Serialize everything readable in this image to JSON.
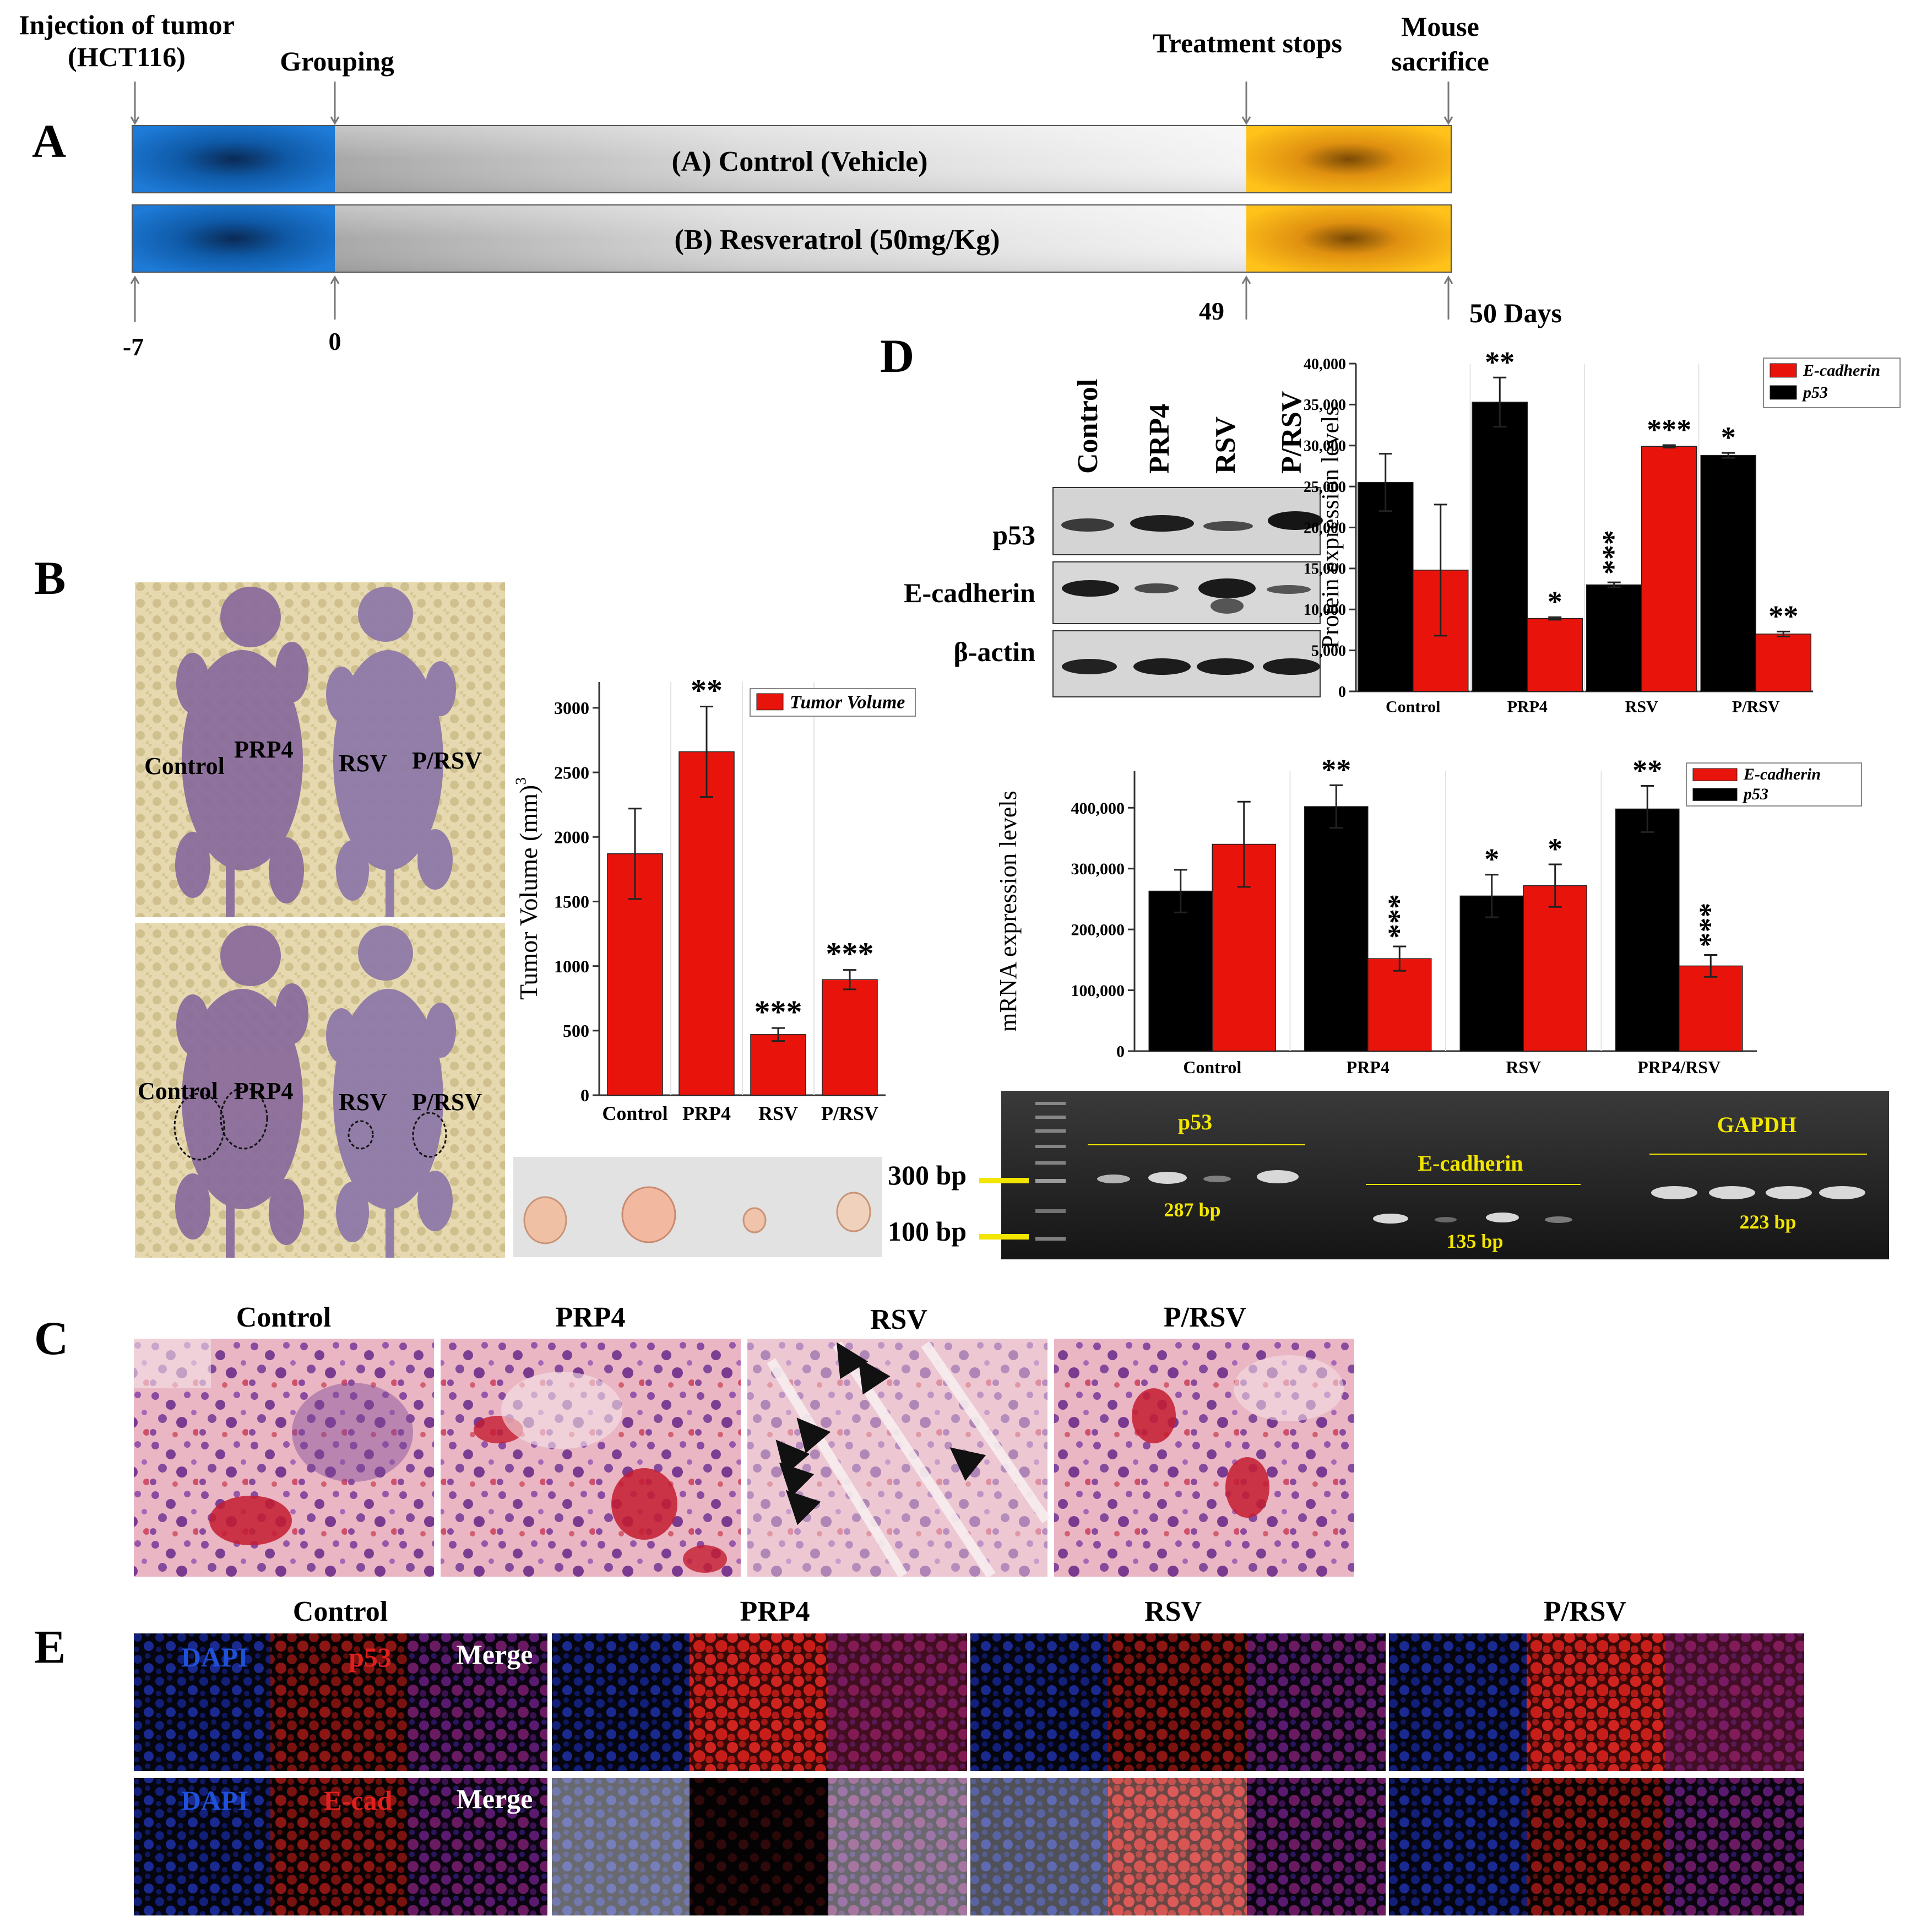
{
  "panel_labels": {
    "a": "A",
    "b": "B",
    "c": "C",
    "d": "D",
    "e": "E"
  },
  "timeline": {
    "event_injection": [
      "Injection of tumor",
      "(HCT116)"
    ],
    "event_grouping": "Grouping",
    "event_treatment_stops": "Treatment stops",
    "event_sacrifice": [
      "Mouse",
      "sacrifice"
    ],
    "group_a": "(A) Control (Vehicle)",
    "group_b": "(B) Resveratrol (50mg/Kg)",
    "day_start": "-7",
    "day_zero": "0",
    "day_49": "49",
    "day_end": "50 Days",
    "colors": {
      "blue": "#1565c0",
      "orange": "#f2a20c",
      "gray": "#cfcfcf"
    }
  },
  "mouse_photo": {
    "top_labels": [
      "Control",
      "PRP4",
      "RSV",
      "P/RSV"
    ],
    "bottom_labels": [
      "Control",
      "PRP4",
      "RSV",
      "P/RSV"
    ],
    "colors": {
      "background": "#e6d9b0",
      "mouse": "#8b6d9c"
    }
  },
  "tumor_colors": {
    "background": "#e2e2e2",
    "tumor": "#efc0a4"
  },
  "gel": {
    "marker_300": "300 bp",
    "marker_100": "100 bp",
    "p53": "p53",
    "p53_size": "287 bp",
    "ecad": "E-cadherin",
    "ecad_size": "135 bp",
    "gapdh": "GAPDH",
    "gapdh_size": "223 bp",
    "label_color": "#f2e600"
  },
  "western_blot": {
    "lanes": [
      "Control",
      "PRP4",
      "RSV",
      "P/RSV"
    ],
    "rows": [
      "p53",
      "E-cadherin",
      "β-actin"
    ]
  },
  "histology": {
    "titles": [
      "Control",
      "PRP4",
      "RSV",
      "P/RSV"
    ],
    "colors": {
      "tissue": "#e6a5b8",
      "nucleus": "#7e4a9a",
      "blood": "#c41c30"
    }
  },
  "immunofluorescence": {
    "groups": [
      "Control",
      "PRP4",
      "RSV",
      "P/RSV"
    ],
    "row1": [
      "DAPI",
      "p53",
      "Merge"
    ],
    "row2": [
      "DAPI",
      "E-cad",
      "Merge"
    ],
    "colors": {
      "dapi": "#1e50d8",
      "red": "#e0201e",
      "merge": "#ffffff"
    }
  },
  "chart_data": [
    {
      "type": "bar",
      "categories": [
        "Control",
        "PRP4",
        "RSV",
        "P/RSV"
      ],
      "series": [
        {
          "name": "Tumor Volume",
          "values": [
            1870,
            2660,
            470,
            895
          ],
          "errors": [
            350,
            350,
            50,
            75
          ],
          "sig": [
            "",
            "**",
            "***",
            "***"
          ]
        }
      ],
      "ylabel": "Tumor Volume (mm)",
      "ylabel_sup": "3",
      "ylim": [
        0,
        3200
      ],
      "yticks": [
        "0",
        "500",
        "1000",
        "1500",
        "2000",
        "2500",
        "3000"
      ],
      "legend_position": "top-right",
      "colors": [
        "#e8140c"
      ]
    },
    {
      "type": "bar",
      "categories": [
        "Control",
        "PRP4",
        "RSV",
        "P/RSV"
      ],
      "series": [
        {
          "name": "p53",
          "values": [
            25500,
            35300,
            13000,
            28800
          ],
          "errors": [
            3500,
            3000,
            300,
            300
          ],
          "sig": [
            "",
            "**",
            "***",
            "*"
          ]
        },
        {
          "name": "E-cadherin",
          "values": [
            14800,
            8900,
            29900,
            7000
          ],
          "errors": [
            8000,
            150,
            150,
            300
          ],
          "sig": [
            "",
            "*",
            "***",
            "**"
          ]
        }
      ],
      "legend_order": [
        "E-cadherin",
        "p53"
      ],
      "ylabel": "Protein expression levels",
      "ylim": [
        0,
        40000
      ],
      "yticks": [
        "0",
        "5,000",
        "10,000",
        "15,000",
        "20,000",
        "25,000",
        "30,000",
        "35,000",
        "40,000"
      ],
      "legend_position": "top-right",
      "colors": [
        "#000000",
        "#e8140c"
      ]
    },
    {
      "type": "bar",
      "categories": [
        "Control",
        "PRP4",
        "RSV",
        "PRP4/RSV"
      ],
      "series": [
        {
          "name": "p53",
          "values": [
            263000,
            402000,
            255000,
            398000
          ],
          "errors": [
            35000,
            35000,
            35000,
            38000
          ],
          "sig": [
            "",
            "**",
            "*",
            "**"
          ]
        },
        {
          "name": "E-cadherin",
          "values": [
            340000,
            152000,
            272000,
            140000
          ],
          "errors": [
            70000,
            20000,
            35000,
            18000
          ],
          "sig": [
            "",
            "***",
            "*",
            "***"
          ]
        }
      ],
      "legend_order": [
        "E-cadherin",
        "p53"
      ],
      "ylabel": "mRNA expression levels",
      "ylim": [
        0,
        460000
      ],
      "yticks": [
        "0",
        "100,000",
        "200,000",
        "300,000",
        "400,000"
      ],
      "legend_position": "top-right",
      "colors": [
        "#000000",
        "#e8140c"
      ]
    }
  ]
}
